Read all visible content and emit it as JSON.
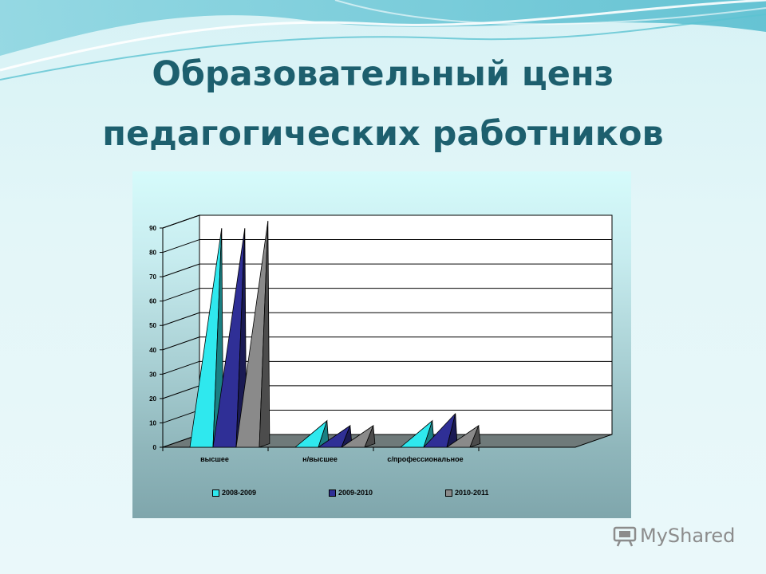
{
  "slide": {
    "title_line1": "Образовательный ценз",
    "title_line2": "педагогических работников",
    "watermark_text": "MyShared"
  },
  "chart_data": {
    "type": "bar",
    "bar_shape": "pyramid-3d",
    "title": "",
    "xlabel": "",
    "ylabel": "",
    "categories": [
      "высшее",
      "н/высшее",
      "с/профессиональное"
    ],
    "series": [
      {
        "name": "2008-2009",
        "color": "#2fe8ee",
        "values": [
          87,
          8,
          8
        ]
      },
      {
        "name": "2009-2010",
        "color": "#2f2f96",
        "values": [
          87,
          6,
          11
        ]
      },
      {
        "name": "2010-2011",
        "color": "#8a8a8a",
        "values": [
          90,
          6,
          6
        ]
      }
    ],
    "ylim": [
      0,
      90
    ],
    "yticks": [
      0,
      10,
      20,
      30,
      40,
      50,
      60,
      70,
      80,
      90
    ],
    "grid": true,
    "legend_position": "bottom",
    "colors": {
      "wall": "#ffffff",
      "floor": "#6f7a7a"
    }
  }
}
